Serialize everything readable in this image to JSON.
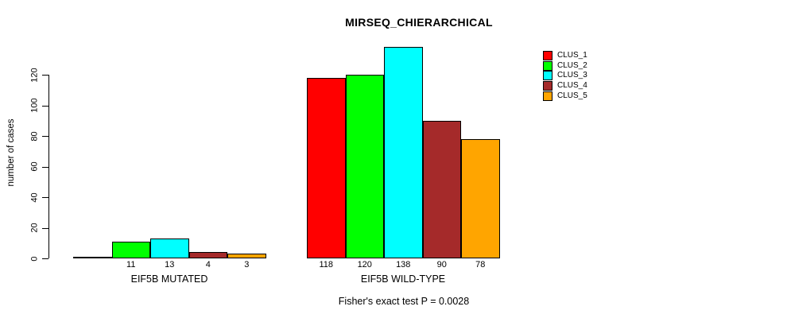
{
  "chart_data": {
    "type": "bar",
    "title": "MIRSEQ_CHIERARCHICAL",
    "ylabel": "number of cases",
    "ylim": [
      0,
      140
    ],
    "yticks": [
      0,
      20,
      40,
      60,
      80,
      100,
      120
    ],
    "grid": false,
    "legend_position": "top-right",
    "series": [
      "CLUS_1",
      "CLUS_2",
      "CLUS_3",
      "CLUS_4",
      "CLUS_5"
    ],
    "colors": [
      "#FF0000",
      "#00FF00",
      "#00FFFF",
      "#A52A2A",
      "#FFA500"
    ],
    "groups": [
      {
        "label": "EIF5B MUTATED",
        "values": [
          0,
          11,
          13,
          4,
          3
        ]
      },
      {
        "label": "EIF5B WILD-TYPE",
        "values": [
          118,
          120,
          138,
          90,
          78
        ]
      }
    ],
    "bar_label_note": "each nonzero bar is labeled with its value below the baseline",
    "footer": "Fisher's exact test P = 0.0028"
  }
}
